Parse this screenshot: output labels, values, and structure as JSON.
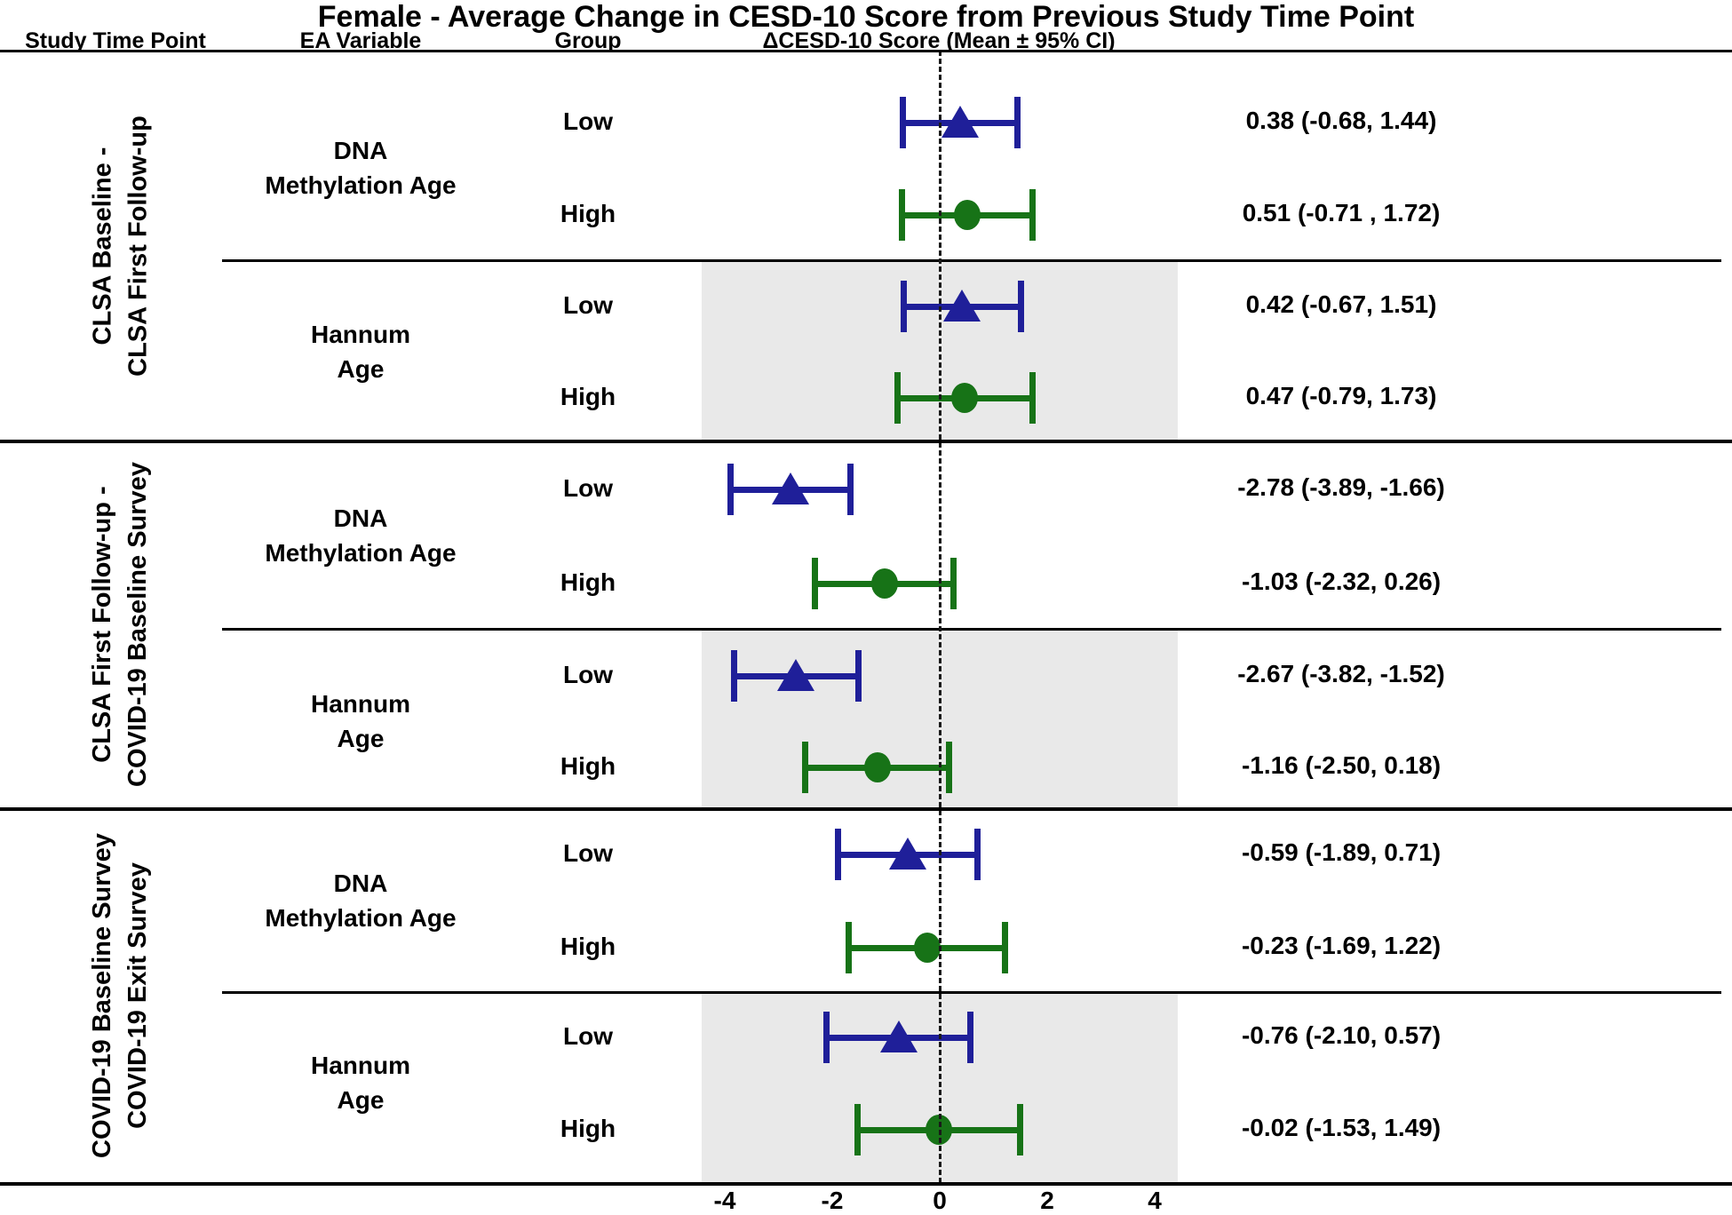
{
  "title": "Female - Average Change in CESD-10 Score from Previous Study Time Point",
  "columns": {
    "study_time_point": "Study Time Point",
    "ea_variable": "EA Variable",
    "group": "Group",
    "score": "ΔCESD-10 Score (Mean ± 95% CI)"
  },
  "colors": {
    "low_marker": "#1f1f99",
    "high_marker": "#177317",
    "shaded_band": "#e9e9e9",
    "reference_line": "#1a1a1a",
    "rule_lines": "#000000"
  },
  "chart_data": {
    "type": "forest",
    "orientation": "horizontal",
    "x_ticks": [
      -4,
      -2,
      0,
      2,
      4
    ],
    "xlim": [
      -5,
      5
    ],
    "reference_line_x": 0,
    "grid": false,
    "marker_legend": {
      "Low": "triangle",
      "High": "circle"
    },
    "shaded_band_range": [
      -4.43,
      4.43
    ],
    "sections": [
      {
        "study_time_point_lines": [
          "CLSA Baseline -",
          "CLSA First Follow-up"
        ],
        "variables": [
          {
            "name_lines": [
              "DNA",
              "Methylation Age"
            ],
            "shaded": false,
            "groups": [
              {
                "group": "Low",
                "mean": 0.38,
                "ci_low": -0.68,
                "ci_high": 1.44,
                "label": "0.38 (-0.68, 1.44)"
              },
              {
                "group": "High",
                "mean": 0.51,
                "ci_low": -0.71,
                "ci_high": 1.72,
                "label": "0.51 (-0.71 , 1.72)"
              }
            ]
          },
          {
            "name_lines": [
              "Hannum",
              "Age"
            ],
            "shaded": true,
            "groups": [
              {
                "group": "Low",
                "mean": 0.42,
                "ci_low": -0.67,
                "ci_high": 1.51,
                "label": "0.42 (-0.67, 1.51)"
              },
              {
                "group": "High",
                "mean": 0.47,
                "ci_low": -0.79,
                "ci_high": 1.73,
                "label": "0.47 (-0.79, 1.73)"
              }
            ]
          }
        ]
      },
      {
        "study_time_point_lines": [
          "CLSA First Follow-up -",
          "COVID-19 Baseline Survey"
        ],
        "variables": [
          {
            "name_lines": [
              "DNA",
              "Methylation Age"
            ],
            "shaded": false,
            "groups": [
              {
                "group": "Low",
                "mean": -2.78,
                "ci_low": -3.89,
                "ci_high": -1.66,
                "label": "-2.78 (-3.89, -1.66)"
              },
              {
                "group": "High",
                "mean": -1.03,
                "ci_low": -2.32,
                "ci_high": 0.26,
                "label": "-1.03 (-2.32, 0.26)"
              }
            ]
          },
          {
            "name_lines": [
              "Hannum",
              "Age"
            ],
            "shaded": true,
            "groups": [
              {
                "group": "Low",
                "mean": -2.67,
                "ci_low": -3.82,
                "ci_high": -1.52,
                "label": "-2.67 (-3.82, -1.52)"
              },
              {
                "group": "High",
                "mean": -1.16,
                "ci_low": -2.5,
                "ci_high": 0.18,
                "label": "-1.16 (-2.50, 0.18)"
              }
            ]
          }
        ]
      },
      {
        "study_time_point_lines": [
          "COVID-19 Baseline Survey",
          "COVID-19 Exit Survey"
        ],
        "variables": [
          {
            "name_lines": [
              "DNA",
              "Methylation Age"
            ],
            "shaded": false,
            "groups": [
              {
                "group": "Low",
                "mean": -0.59,
                "ci_low": -1.89,
                "ci_high": 0.71,
                "label": "-0.59 (-1.89, 0.71)"
              },
              {
                "group": "High",
                "mean": -0.23,
                "ci_low": -1.69,
                "ci_high": 1.22,
                "label": "-0.23 (-1.69, 1.22)"
              }
            ]
          },
          {
            "name_lines": [
              "Hannum",
              "Age"
            ],
            "shaded": true,
            "groups": [
              {
                "group": "Low",
                "mean": -0.76,
                "ci_low": -2.1,
                "ci_high": 0.57,
                "label": "-0.76 (-2.10, 0.57)"
              },
              {
                "group": "High",
                "mean": -0.02,
                "ci_low": -1.53,
                "ci_high": 1.49,
                "label": "-0.02 (-1.53, 1.49)"
              }
            ]
          }
        ]
      }
    ]
  }
}
